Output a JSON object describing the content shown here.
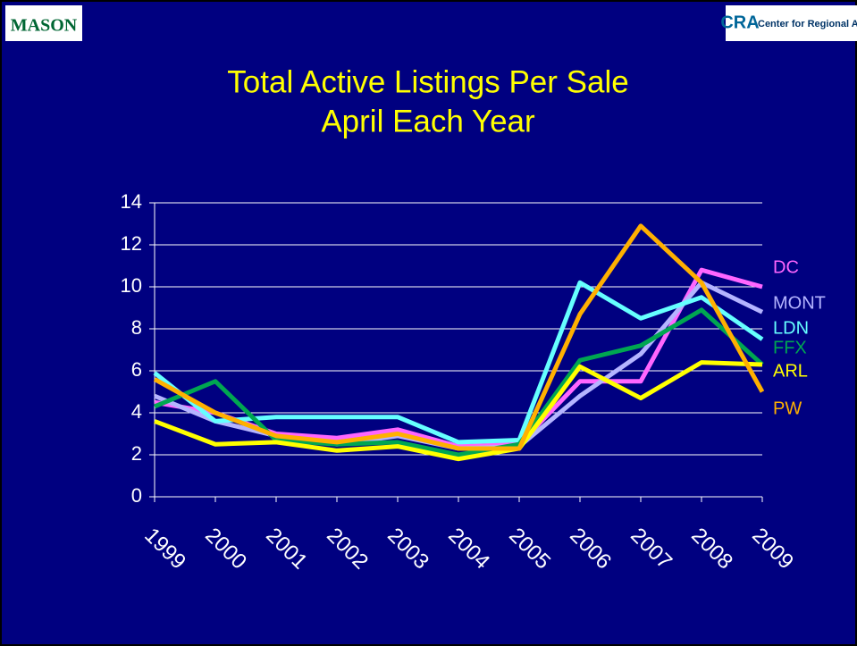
{
  "logos": {
    "left": "MASON",
    "right": "Center for Regional Analysis"
  },
  "chart_data": {
    "type": "line",
    "title": [
      "Total Active Listings Per Sale",
      "April Each Year"
    ],
    "categories": [
      "1999",
      "2000",
      "2001",
      "2002",
      "2003",
      "2004",
      "2005",
      "2006",
      "2007",
      "2008",
      "2009"
    ],
    "series": [
      {
        "name": "DC",
        "color": "#ff66ff",
        "values": [
          4.5,
          4.0,
          3.0,
          2.8,
          3.2,
          2.4,
          2.5,
          5.5,
          5.5,
          10.8,
          10.0
        ]
      },
      {
        "name": "MONT",
        "color": "#b4b4ff",
        "values": [
          4.8,
          3.6,
          2.9,
          2.5,
          2.9,
          2.3,
          2.4,
          4.8,
          6.8,
          10.2,
          8.8
        ]
      },
      {
        "name": "LDN",
        "color": "#66ffff",
        "values": [
          5.9,
          3.6,
          3.8,
          3.8,
          3.8,
          2.6,
          2.7,
          10.2,
          8.5,
          9.5,
          7.5
        ]
      },
      {
        "name": "FFX",
        "color": "#00a651",
        "values": [
          4.3,
          5.5,
          2.7,
          2.5,
          2.6,
          2.0,
          2.5,
          6.5,
          7.2,
          8.9,
          6.3
        ]
      },
      {
        "name": "ARL",
        "color": "#ffff00",
        "values": [
          3.6,
          2.5,
          2.6,
          2.2,
          2.4,
          1.8,
          2.3,
          6.2,
          4.7,
          6.4,
          6.3
        ]
      },
      {
        "name": "PW",
        "color": "#ffb000",
        "values": [
          5.6,
          4.0,
          2.9,
          2.6,
          3.0,
          2.3,
          2.3,
          8.7,
          12.9,
          10.2,
          5.0
        ]
      }
    ],
    "ylim": [
      0,
      14
    ],
    "yticks": [
      0,
      2,
      4,
      6,
      8,
      10,
      12,
      14
    ],
    "grid": true
  }
}
